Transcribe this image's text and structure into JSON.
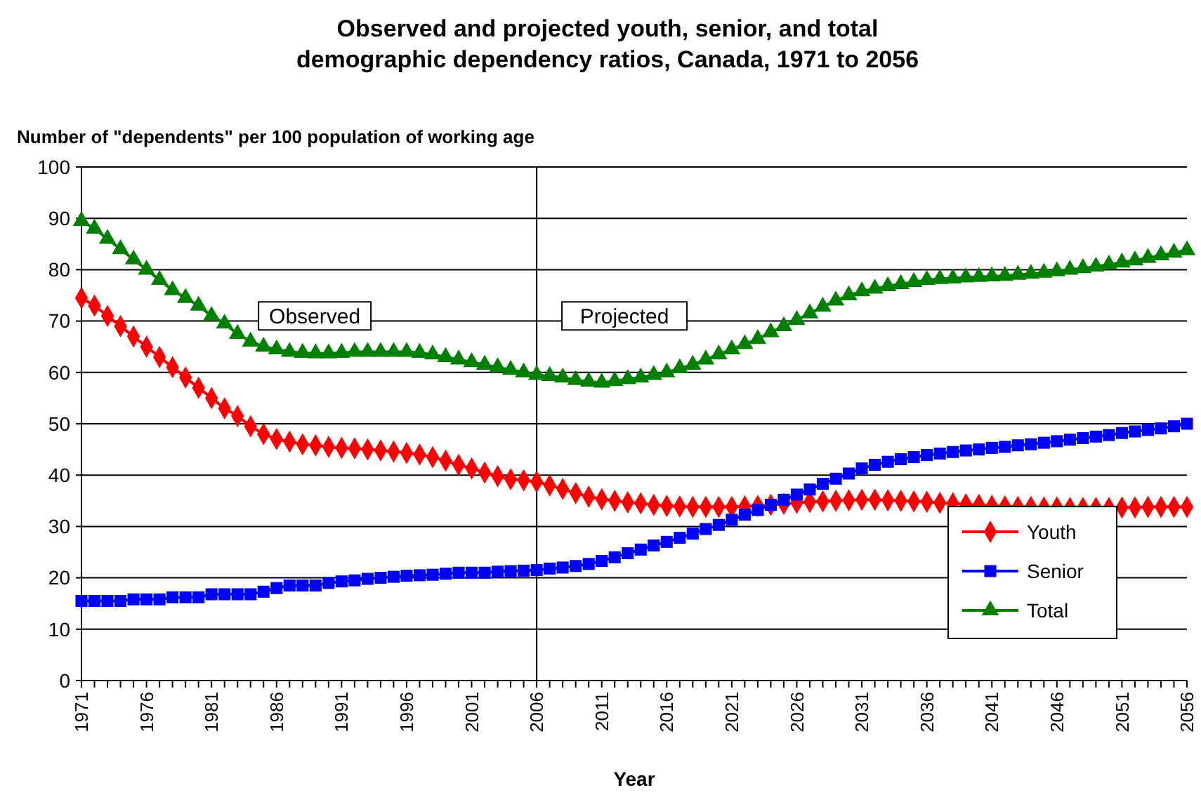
{
  "chart_data": {
    "type": "line",
    "title": "Observed and projected youth, senior, and total demographic dependency ratios, Canada, 1971 to 2056",
    "xlabel": "Year",
    "ylabel": "Number of \"dependents\" per 100  population of working age",
    "categories": [
      "1971",
      null,
      null,
      null,
      null,
      "1976",
      null,
      null,
      null,
      null,
      "1981",
      null,
      null,
      null,
      null,
      "1986",
      null,
      null,
      null,
      null,
      "1991",
      null,
      null,
      null,
      null,
      "1996",
      null,
      null,
      null,
      null,
      "2001",
      null,
      null,
      null,
      null,
      "2006",
      null,
      null,
      null,
      null,
      "2011",
      null,
      null,
      null,
      null,
      "2016",
      null,
      null,
      null,
      null,
      "2021",
      null,
      null,
      null,
      null,
      "2026",
      null,
      null,
      null,
      null,
      "2031",
      null,
      null,
      null,
      null,
      "2036",
      null,
      null,
      null,
      null,
      "2041",
      null,
      null,
      null,
      null,
      "2046",
      null,
      null,
      null,
      null,
      "2051",
      null,
      null,
      null,
      null,
      "2056"
    ],
    "series": [
      {
        "name": "Youth",
        "color": "#ff0000",
        "marker": "diamond",
        "values": [
          74.5,
          73,
          71,
          69,
          67,
          65,
          63,
          61,
          59,
          57,
          55,
          53,
          51.5,
          49.5,
          48,
          47,
          46.5,
          46,
          45.8,
          45.5,
          45.3,
          45.2,
          45,
          44.8,
          44.6,
          44.3,
          44,
          43.5,
          42.8,
          42,
          41.3,
          40.5,
          39.8,
          39.2,
          39,
          38.7,
          38,
          37.3,
          36.5,
          35.8,
          35.3,
          35,
          34.7,
          34.5,
          34.2,
          34,
          33.9,
          33.8,
          33.8,
          33.8,
          33.8,
          33.9,
          34,
          34.2,
          34.4,
          34.6,
          34.8,
          34.9,
          35,
          35.1,
          35.2,
          35.2,
          35.1,
          35,
          34.9,
          34.8,
          34.6,
          34.5,
          34.3,
          34.2,
          34,
          33.9,
          33.8,
          33.8,
          33.7,
          33.7,
          33.6,
          33.6,
          33.6,
          33.6,
          33.7,
          33.7,
          33.8,
          33.8,
          33.8,
          33.8
        ]
      },
      {
        "name": "Senior",
        "color": "#0000ff",
        "marker": "square",
        "values": [
          15.5,
          15.5,
          15.5,
          15.5,
          15.8,
          15.8,
          15.8,
          16.2,
          16.2,
          16.2,
          16.8,
          16.8,
          16.8,
          16.8,
          17.3,
          18,
          18.5,
          18.5,
          18.5,
          19,
          19.3,
          19.5,
          19.8,
          20,
          20.2,
          20.4,
          20.5,
          20.6,
          20.8,
          21,
          21,
          21,
          21.2,
          21.3,
          21.4,
          21.5,
          21.8,
          22,
          22.3,
          22.7,
          23.3,
          24,
          24.8,
          25.5,
          26.3,
          27,
          27.8,
          28.6,
          29.5,
          30.3,
          31.3,
          32.3,
          33.2,
          34.2,
          35.2,
          36.2,
          37.2,
          38.3,
          39.3,
          40.3,
          41.3,
          42,
          42.6,
          43.1,
          43.5,
          43.9,
          44.2,
          44.5,
          44.8,
          45,
          45.3,
          45.5,
          45.8,
          46,
          46.3,
          46.6,
          46.9,
          47.2,
          47.5,
          47.8,
          48.2,
          48.5,
          48.8,
          49.1,
          49.5,
          50
        ]
      },
      {
        "name": "Total",
        "color": "#008000",
        "marker": "triangle",
        "values": [
          89.5,
          88,
          86,
          84,
          82,
          80,
          78,
          76,
          74.5,
          73,
          71,
          69.5,
          67.5,
          66,
          65,
          64.5,
          64,
          63.8,
          63.7,
          63.7,
          63.8,
          64,
          64,
          64,
          64,
          64,
          63.8,
          63.5,
          63,
          62.5,
          62,
          61.5,
          61,
          60.5,
          60,
          59.5,
          59.3,
          59,
          58.5,
          58.2,
          58,
          58.3,
          58.7,
          59,
          59.5,
          60,
          60.8,
          61.5,
          62.5,
          63.5,
          64.5,
          65.5,
          66.5,
          67.8,
          69,
          70.2,
          71.5,
          72.8,
          74,
          75,
          75.8,
          76.3,
          76.8,
          77.2,
          77.6,
          78,
          78.2,
          78.3,
          78.5,
          78.6,
          78.7,
          78.8,
          79,
          79.2,
          79.4,
          79.7,
          80,
          80.3,
          80.6,
          81,
          81.4,
          81.8,
          82.3,
          82.8,
          83.3,
          83.8
        ]
      }
    ],
    "ylim": [
      0,
      100
    ],
    "yticks": [
      0,
      10,
      20,
      30,
      40,
      50,
      60,
      70,
      80,
      90,
      100
    ],
    "grid": "y",
    "legend": "bottom right",
    "line_style": "solid",
    "ref_lines": [
      {
        "axis": "x",
        "value": "2006",
        "color": "#000000"
      }
    ],
    "annotations": [
      "Observed",
      "Projected"
    ]
  }
}
